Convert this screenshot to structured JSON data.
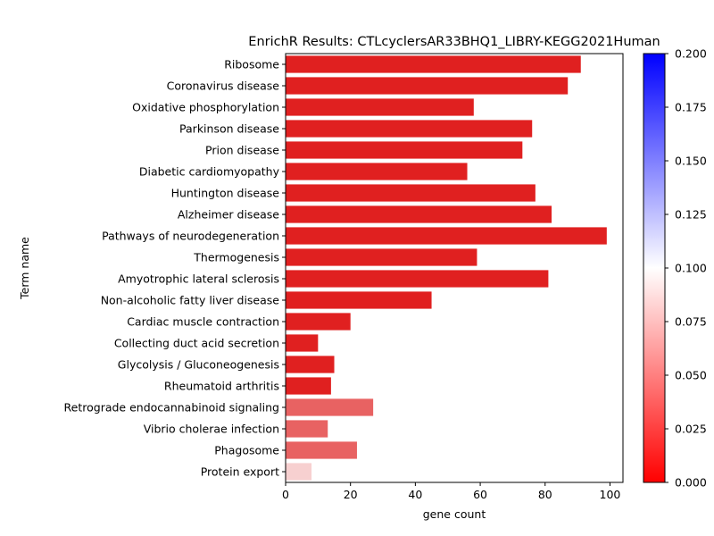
{
  "chart_data": {
    "type": "bar",
    "orientation": "horizontal",
    "title": "EnrichR Results: CTLcyclersAR33BHQ1_LIBRY-KEGG2021Human",
    "xlabel": "gene count",
    "ylabel": "Term name",
    "xlim": [
      0,
      104
    ],
    "xticks": [
      0,
      20,
      40,
      60,
      80,
      100
    ],
    "categories": [
      "Ribosome",
      "Coronavirus disease",
      "Oxidative phosphorylation",
      "Parkinson disease",
      "Prion disease",
      "Diabetic cardiomyopathy",
      "Huntington disease",
      "Alzheimer disease",
      "Pathways of neurodegeneration",
      "Thermogenesis",
      "Amyotrophic lateral sclerosis",
      "Non-alcoholic fatty liver disease",
      "Cardiac muscle contraction",
      "Collecting duct acid secretion",
      "Glycolysis / Gluconeogenesis",
      "Rheumatoid arthritis",
      "Retrograde endocannabinoid signaling",
      "Vibrio cholerae infection",
      "Phagosome",
      "Protein export"
    ],
    "values": [
      91,
      87,
      58,
      76,
      73,
      56,
      77,
      82,
      99,
      59,
      81,
      45,
      20,
      10,
      15,
      14,
      27,
      13,
      22,
      8
    ],
    "bar_colors": [
      "#e02020",
      "#e02020",
      "#e02020",
      "#e02020",
      "#e02020",
      "#e02020",
      "#e02020",
      "#e02020",
      "#e02020",
      "#e02020",
      "#e02020",
      "#e02020",
      "#e02020",
      "#e02020",
      "#e02020",
      "#e02020",
      "#e86262",
      "#e86262",
      "#e86262",
      "#f7d0d0"
    ],
    "colorbar": {
      "range": [
        0.0,
        0.2
      ],
      "ticks": [
        "0.000",
        "0.025",
        "0.050",
        "0.075",
        "0.100",
        "0.125",
        "0.150",
        "0.175",
        "0.200"
      ],
      "colors": [
        "#ff0000",
        "#ffffff",
        "#0000ff"
      ]
    },
    "grid": false,
    "legend": "none"
  }
}
